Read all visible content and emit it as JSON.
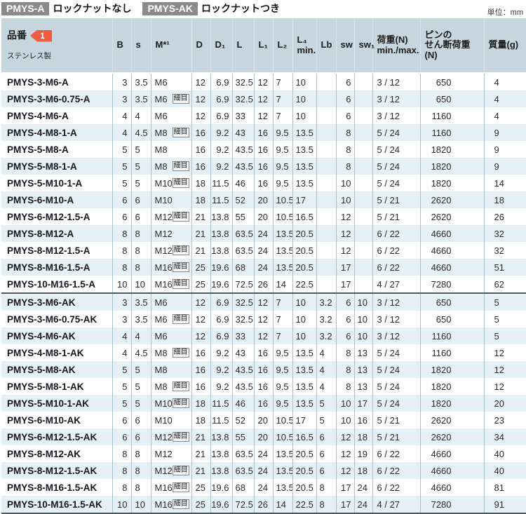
{
  "unit_label": "単位：mm",
  "legend": [
    {
      "code": "PMYS-A",
      "desc": "ロックナットなし"
    },
    {
      "code": "PMYS-AK",
      "desc": "ロックナットつき"
    }
  ],
  "table": {
    "header": {
      "part_no": "品番",
      "part_no_badge": "1",
      "material": "ステンレス製",
      "cols": [
        "B",
        "s",
        "M*¹",
        "D",
        "D₁",
        "L",
        "L₁",
        "L₂",
        "L₄\nmin.",
        "Lb",
        "sw",
        "sw₁",
        "荷重(N)\nmin./max.",
        "ピンの\nせん断荷重(N)",
        "質量(g)"
      ]
    },
    "fine_tag": "細目",
    "sections": [
      {
        "name": "PMYS-A",
        "rows": [
          [
            "PMYS-3-M6-A",
            "3",
            "3.5",
            "M6",
            false,
            "12",
            "6.9",
            "32.5",
            "12",
            "7",
            "10",
            "",
            "6",
            "",
            "3 / 12",
            "650",
            "4"
          ],
          [
            "PMYS-3-M6-0.75-A",
            "3",
            "3.5",
            "M6",
            true,
            "12",
            "6.9",
            "32.5",
            "12",
            "7",
            "10",
            "",
            "6",
            "",
            "3 / 12",
            "650",
            "4"
          ],
          [
            "PMYS-4-M6-A",
            "4",
            "4",
            "M6",
            false,
            "12",
            "6.9",
            "33",
            "12",
            "7",
            "10",
            "",
            "6",
            "",
            "3 / 12",
            "1160",
            "4"
          ],
          [
            "PMYS-4-M8-1-A",
            "4",
            "4.5",
            "M8",
            true,
            "16",
            "9.2",
            "43",
            "16",
            "9.5",
            "13.5",
            "",
            "8",
            "",
            "5 / 24",
            "1160",
            "9"
          ],
          [
            "PMYS-5-M8-A",
            "5",
            "5",
            "M8",
            false,
            "16",
            "9.2",
            "43.5",
            "16",
            "9.5",
            "13.5",
            "",
            "8",
            "",
            "5 / 24",
            "1820",
            "9"
          ],
          [
            "PMYS-5-M8-1-A",
            "5",
            "5",
            "M8",
            true,
            "16",
            "9.2",
            "43.5",
            "16",
            "9.5",
            "13.5",
            "",
            "8",
            "",
            "5 / 24",
            "1820",
            "9"
          ],
          [
            "PMYS-5-M10-1-A",
            "5",
            "5",
            "M10",
            true,
            "18",
            "11.5",
            "46",
            "16",
            "9.5",
            "13.5",
            "",
            "10",
            "",
            "5 / 24",
            "1820",
            "14"
          ],
          [
            "PMYS-6-M10-A",
            "6",
            "6",
            "M10",
            false,
            "18",
            "11.5",
            "52",
            "20",
            "10.5",
            "17",
            "",
            "10",
            "",
            "5 / 21",
            "2620",
            "18"
          ],
          [
            "PMYS-6-M12-1.5-A",
            "6",
            "6",
            "M12",
            true,
            "21",
            "13.8",
            "55",
            "20",
            "10.5",
            "16.5",
            "",
            "12",
            "",
            "5 / 21",
            "2620",
            "26"
          ],
          [
            "PMYS-8-M12-A",
            "8",
            "8",
            "M12",
            false,
            "21",
            "13.8",
            "63.5",
            "24",
            "13.5",
            "20.5",
            "",
            "12",
            "",
            "6 / 22",
            "4660",
            "32"
          ],
          [
            "PMYS-8-M12-1.5-A",
            "8",
            "8",
            "M12",
            true,
            "21",
            "13.8",
            "63.5",
            "24",
            "13.5",
            "20.5",
            "",
            "12",
            "",
            "6 / 22",
            "4660",
            "32"
          ],
          [
            "PMYS-8-M16-1.5-A",
            "8",
            "8",
            "M16",
            true,
            "25",
            "19.6",
            "68",
            "24",
            "13.5",
            "20.5",
            "",
            "17",
            "",
            "6 / 22",
            "4660",
            "51"
          ],
          [
            "PMYS-10-M16-1.5-A",
            "10",
            "10",
            "M16",
            true,
            "25",
            "19.6",
            "72.5",
            "26",
            "14",
            "22.5",
            "",
            "17",
            "",
            "4 / 27",
            "7280",
            "62"
          ]
        ]
      },
      {
        "name": "PMYS-AK",
        "rows": [
          [
            "PMYS-3-M6-AK",
            "3",
            "3.5",
            "M6",
            false,
            "12",
            "6.9",
            "32.5",
            "12",
            "7",
            "10",
            "3.2",
            "6",
            "10",
            "3 / 12",
            "650",
            "5"
          ],
          [
            "PMYS-3-M6-0.75-AK",
            "3",
            "3.5",
            "M6",
            true,
            "12",
            "6.9",
            "32.5",
            "12",
            "7",
            "10",
            "3.2",
            "6",
            "10",
            "3 / 12",
            "650",
            "5"
          ],
          [
            "PMYS-4-M6-AK",
            "4",
            "4",
            "M6",
            false,
            "12",
            "6.9",
            "33",
            "12",
            "7",
            "10",
            "3.2",
            "6",
            "10",
            "3 / 12",
            "1160",
            "5"
          ],
          [
            "PMYS-4-M8-1-AK",
            "4",
            "4.5",
            "M8",
            true,
            "16",
            "9.2",
            "43",
            "16",
            "9.5",
            "13.5",
            "4",
            "8",
            "13",
            "5 / 24",
            "1160",
            "12"
          ],
          [
            "PMYS-5-M8-AK",
            "5",
            "5",
            "M8",
            false,
            "16",
            "9.2",
            "43.5",
            "16",
            "9.5",
            "13.5",
            "4",
            "8",
            "13",
            "5 / 24",
            "1820",
            "12"
          ],
          [
            "PMYS-5-M8-1-AK",
            "5",
            "5",
            "M8",
            true,
            "16",
            "9.2",
            "43.5",
            "16",
            "9.5",
            "13.5",
            "4",
            "8",
            "13",
            "5 / 24",
            "1820",
            "12"
          ],
          [
            "PMYS-5-M10-1-AK",
            "5",
            "5",
            "M10",
            true,
            "18",
            "11.5",
            "46",
            "16",
            "9.5",
            "13.5",
            "5",
            "10",
            "17",
            "5 / 24",
            "1820",
            "20"
          ],
          [
            "PMYS-6-M10-AK",
            "6",
            "6",
            "M10",
            false,
            "18",
            "11.5",
            "52",
            "20",
            "10.5",
            "17",
            "5",
            "10",
            "16",
            "5 / 21",
            "2620",
            "23"
          ],
          [
            "PMYS-6-M12-1.5-AK",
            "6",
            "6",
            "M12",
            true,
            "21",
            "13.8",
            "55",
            "20",
            "10.5",
            "16.5",
            "6",
            "12",
            "18",
            "5 / 21",
            "2620",
            "34"
          ],
          [
            "PMYS-8-M12-AK",
            "8",
            "8",
            "M12",
            false,
            "21",
            "13.8",
            "63.5",
            "24",
            "13.5",
            "20.5",
            "6",
            "12",
            "19",
            "6 / 22",
            "4660",
            "40"
          ],
          [
            "PMYS-8-M12-1.5-AK",
            "8",
            "8",
            "M12",
            true,
            "21",
            "13.8",
            "63.5",
            "24",
            "13.5",
            "20.5",
            "6",
            "12",
            "18",
            "6 / 22",
            "4660",
            "40"
          ],
          [
            "PMYS-8-M16-1.5-AK",
            "8",
            "8",
            "M16",
            true,
            "25",
            "19.6",
            "68",
            "24",
            "13.5",
            "20.5",
            "8",
            "17",
            "24",
            "6 / 22",
            "4660",
            "81"
          ],
          [
            "PMYS-10-M16-1.5-AK",
            "10",
            "10",
            "M16",
            true,
            "25",
            "19.6",
            "72.5",
            "26",
            "14",
            "22.5",
            "8",
            "17",
            "24",
            "4 / 27",
            "7280",
            "91"
          ]
        ]
      }
    ]
  },
  "colors": {
    "header_bg": "#c6d5de",
    "stripe_bg": "#e6f0f7",
    "badge_gray": "#8a8a8a",
    "callout_red": "#f15b3f",
    "grid_line": "#a9c1cd",
    "section_line": "#4e5a61"
  }
}
